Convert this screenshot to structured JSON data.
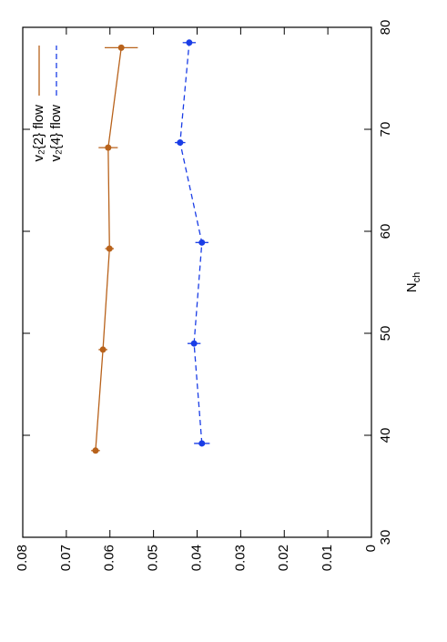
{
  "chart_data": {
    "type": "line",
    "xlabel": "N",
    "xlabel_sub": "ch",
    "xlim": [
      30,
      80
    ],
    "xticks": [
      30,
      40,
      50,
      60,
      70,
      80
    ],
    "ylim": [
      0,
      0.08
    ],
    "yticks": [
      0,
      0.01,
      0.02,
      0.03,
      0.04,
      0.05,
      0.06,
      0.07,
      0.08
    ],
    "legend": "upper right",
    "series": [
      {
        "name": "v₂{2} flow",
        "color": "#b8621b",
        "dash": false,
        "x": [
          38.5,
          48.4,
          58.3,
          68.2,
          78
        ],
        "values": [
          0.0633,
          0.0616,
          0.0601,
          0.0604,
          0.0574
        ],
        "errors": [
          0.001,
          0.001,
          0.001,
          0.0022,
          0.0038
        ]
      },
      {
        "name": "v₂{4} flow",
        "color": "#1a3de6",
        "dash": true,
        "x": [
          39.2,
          49,
          58.9,
          68.7,
          78.5
        ],
        "values": [
          0.0389,
          0.0407,
          0.0389,
          0.0439,
          0.0418
        ],
        "errors": [
          0.0018,
          0.0015,
          0.0015,
          0.0012,
          0.0015
        ]
      }
    ]
  }
}
